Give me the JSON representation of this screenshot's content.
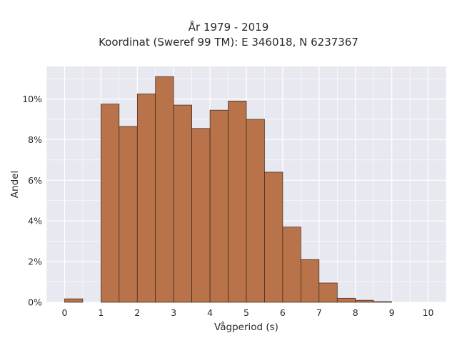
{
  "chart_data": {
    "type": "bar",
    "title": "År 1979 - 2019",
    "subtitle": "Koordinat (Sweref 99 TM): E 346018, N 6237367",
    "xlabel": "Vågperiod (s)",
    "ylabel": "Andel",
    "bin_width": 0.5,
    "bins_start": [
      0,
      1,
      1.5,
      2,
      2.5,
      3,
      3.5,
      4,
      4.5,
      5,
      5.5,
      6,
      6.5,
      7,
      7.5,
      8,
      8.5
    ],
    "values": [
      0.17,
      9.75,
      8.65,
      10.25,
      11.1,
      9.7,
      8.55,
      9.45,
      9.9,
      9.0,
      6.4,
      3.7,
      2.1,
      0.95,
      0.2,
      0.1,
      0.03
    ],
    "xlim": [
      -0.5,
      10.5
    ],
    "ylim": [
      0,
      11.6
    ],
    "x_ticks": [
      "0",
      "1",
      "2",
      "3",
      "4",
      "5",
      "6",
      "7",
      "8",
      "9",
      "10"
    ],
    "y_ticks": [
      "0%",
      "2%",
      "4%",
      "6%",
      "8%",
      "10%"
    ],
    "grid": true,
    "colors": {
      "bar_fill": "#b8734a",
      "bar_stroke": "#3a2418",
      "plot_bg": "#e8e8f1",
      "grid": "#ffffff"
    }
  }
}
